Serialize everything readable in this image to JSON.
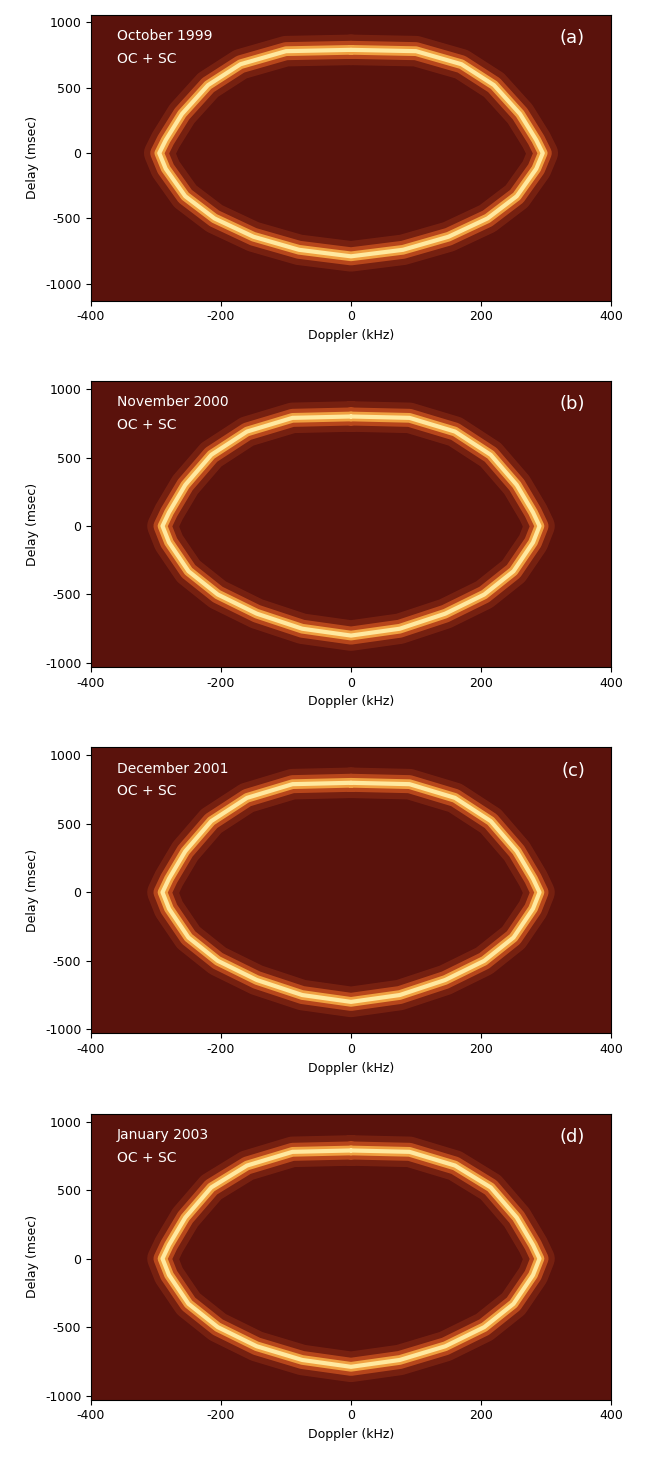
{
  "chart_data": [
    {
      "type": "line",
      "annotations": [
        "October 1999",
        "OC + SC",
        "(a)"
      ],
      "x_label": "Doppler (kHz)",
      "y_label": "Delay (msec)",
      "x": [
        0,
        100,
        170,
        220,
        260,
        285,
        295,
        285,
        255,
        210,
        150,
        80,
        0,
        -80,
        -150,
        -210,
        -255,
        -285,
        -295,
        -285,
        -260,
        -220,
        -170,
        -100,
        0
      ],
      "values": [
        790,
        780,
        680,
        520,
        300,
        100,
        0,
        -120,
        -330,
        -500,
        -640,
        -740,
        -790,
        -740,
        -640,
        -500,
        -330,
        -120,
        0,
        100,
        300,
        520,
        680,
        780,
        790
      ],
      "color": "#ffe9a0",
      "xlim": [
        -400,
        400
      ],
      "xticks": [
        -400,
        -200,
        0,
        200,
        400
      ],
      "ylim": [
        -1130,
        1060
      ],
      "yticks": [
        -1000,
        -500,
        0,
        500,
        1000
      ]
    },
    {
      "type": "line",
      "annotations": [
        "November 2000",
        "OC + SC",
        "(b)"
      ],
      "x_label": "Doppler (kHz)",
      "y_label": "Delay (msec)",
      "x": [
        0,
        90,
        160,
        215,
        255,
        280,
        290,
        280,
        250,
        205,
        145,
        75,
        0,
        -75,
        -145,
        -205,
        -250,
        -280,
        -290,
        -280,
        -255,
        -215,
        -160,
        -90,
        0
      ],
      "values": [
        800,
        790,
        690,
        520,
        300,
        100,
        0,
        -120,
        -330,
        -500,
        -640,
        -750,
        -800,
        -750,
        -640,
        -500,
        -330,
        -120,
        0,
        100,
        300,
        520,
        690,
        790,
        800
      ],
      "color": "#ffe9a0",
      "xlim": [
        -400,
        400
      ],
      "xticks": [
        -400,
        -200,
        0,
        200,
        400
      ],
      "ylim": [
        -1030,
        1060
      ],
      "yticks": [
        -1000,
        -500,
        0,
        500,
        1000
      ]
    },
    {
      "type": "line",
      "annotations": [
        "December 2001",
        "OC + SC",
        "(c)"
      ],
      "x_label": "Doppler (kHz)",
      "y_label": "Delay (msec)",
      "x": [
        0,
        90,
        160,
        215,
        255,
        280,
        290,
        280,
        250,
        205,
        145,
        75,
        0,
        -75,
        -145,
        -205,
        -250,
        -280,
        -290,
        -280,
        -255,
        -215,
        -160,
        -90,
        0
      ],
      "values": [
        800,
        790,
        690,
        520,
        300,
        100,
        0,
        -120,
        -330,
        -500,
        -640,
        -750,
        -800,
        -750,
        -640,
        -500,
        -330,
        -120,
        0,
        100,
        300,
        520,
        690,
        790,
        800
      ],
      "color": "#ffe9a0",
      "xlim": [
        -400,
        400
      ],
      "xticks": [
        -400,
        -200,
        0,
        200,
        400
      ],
      "ylim": [
        -1030,
        1060
      ],
      "yticks": [
        -1000,
        -500,
        0,
        500,
        1000
      ]
    },
    {
      "type": "line",
      "annotations": [
        "January 2003",
        "OC + SC",
        "(d)"
      ],
      "x_label": "Doppler (kHz)",
      "y_label": "Delay (msec)",
      "x": [
        0,
        90,
        160,
        215,
        255,
        280,
        290,
        280,
        250,
        205,
        145,
        75,
        0,
        -75,
        -145,
        -205,
        -250,
        -280,
        -290,
        -280,
        -255,
        -215,
        -160,
        -90,
        0
      ],
      "values": [
        790,
        780,
        680,
        520,
        300,
        100,
        0,
        -120,
        -330,
        -500,
        -640,
        -740,
        -790,
        -740,
        -640,
        -500,
        -330,
        -120,
        0,
        100,
        300,
        520,
        680,
        780,
        790
      ],
      "color": "#ffe9a0",
      "xlim": [
        -400,
        400
      ],
      "xticks": [
        -400,
        -200,
        0,
        200,
        400
      ],
      "ylim": [
        -1030,
        1060
      ],
      "yticks": [
        -1000,
        -500,
        0,
        500,
        1000
      ]
    }
  ]
}
